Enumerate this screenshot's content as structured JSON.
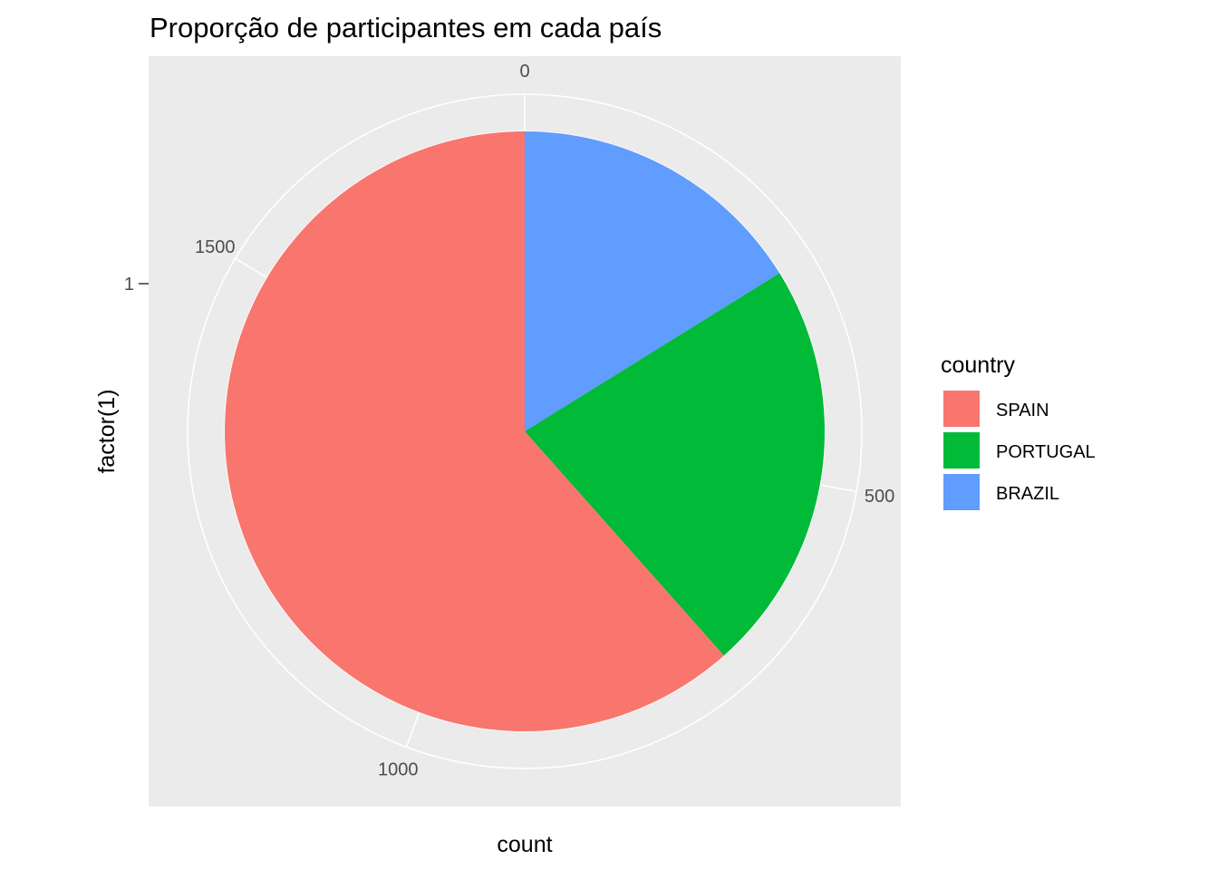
{
  "chart_data": {
    "type": "pie",
    "title": "Proporção de participantes em cada país",
    "xlabel": "count",
    "ylabel": "factor(1)",
    "y_tick_labels": [
      "1"
    ],
    "theta_ticks": [
      0,
      500,
      1000,
      1500
    ],
    "theta_range": [
      0,
      1795
    ],
    "grid": true,
    "legend_position": "right",
    "legend_title": "country",
    "slices": [
      {
        "name": "SPAIN",
        "value": 1105,
        "color": "#F8766D"
      },
      {
        "name": "PORTUGAL",
        "value": 400,
        "color": "#00BA38"
      },
      {
        "name": "BRAZIL",
        "value": 290,
        "color": "#619CFF"
      }
    ]
  }
}
